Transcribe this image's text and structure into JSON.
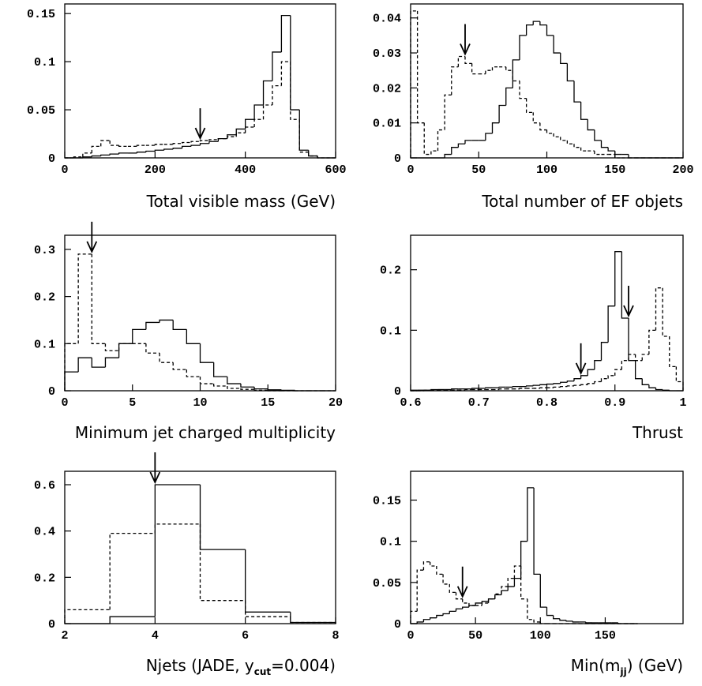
{
  "chart_data": [
    {
      "type": "histogram",
      "xlabel": "Total visible mass (GeV)",
      "bins": [
        0,
        20,
        40,
        60,
        80,
        100,
        120,
        140,
        160,
        180,
        200,
        220,
        240,
        260,
        280,
        300,
        320,
        340,
        360,
        380,
        400,
        420,
        440,
        460,
        480,
        500,
        520,
        540,
        560,
        580,
        600
      ],
      "series": [
        {
          "style": "solid",
          "color": "#000000",
          "values": [
            0,
            0,
            0.001,
            0.002,
            0.003,
            0.004,
            0.005,
            0.005,
            0.006,
            0.007,
            0.008,
            0.009,
            0.01,
            0.012,
            0.013,
            0.015,
            0.017,
            0.02,
            0.024,
            0.03,
            0.04,
            0.055,
            0.08,
            0.11,
            0.148,
            0.05,
            0.008,
            0.002,
            0,
            0
          ]
        },
        {
          "style": "dashed",
          "color": "#000000",
          "values": [
            0,
            0.001,
            0.005,
            0.012,
            0.018,
            0.013,
            0.012,
            0.012,
            0.013,
            0.013,
            0.014,
            0.014,
            0.015,
            0.016,
            0.017,
            0.018,
            0.019,
            0.02,
            0.022,
            0.026,
            0.032,
            0.04,
            0.055,
            0.075,
            0.1,
            0.04,
            0.006,
            0.002,
            0,
            0
          ]
        }
      ],
      "cuts": [
        300
      ],
      "xlim": [
        0,
        600
      ],
      "xticks": [
        0,
        200,
        400,
        600
      ],
      "ylim": [
        0,
        0.16
      ],
      "yticks": [
        0,
        0.05,
        0.1,
        0.15
      ]
    },
    {
      "type": "histogram",
      "xlabel": "Total number of EF objets",
      "bins": [
        0,
        5,
        10,
        15,
        20,
        25,
        30,
        35,
        40,
        45,
        50,
        55,
        60,
        65,
        70,
        75,
        80,
        85,
        90,
        95,
        100,
        105,
        110,
        115,
        120,
        125,
        130,
        135,
        140,
        145,
        150,
        155,
        160,
        165,
        170,
        175,
        180,
        185,
        190,
        195,
        200
      ],
      "series": [
        {
          "style": "solid",
          "color": "#000000",
          "values": [
            0,
            0,
            0,
            0,
            0,
            0.001,
            0.003,
            0.004,
            0.005,
            0.005,
            0.005,
            0.007,
            0.01,
            0.015,
            0.02,
            0.028,
            0.035,
            0.038,
            0.039,
            0.038,
            0.035,
            0.03,
            0.027,
            0.022,
            0.016,
            0.011,
            0.008,
            0.005,
            0.003,
            0.002,
            0.001,
            0.001,
            0,
            0,
            0,
            0,
            0,
            0,
            0,
            0
          ]
        },
        {
          "style": "dashed",
          "color": "#000000",
          "values": [
            0.042,
            0.01,
            0.001,
            0.002,
            0.008,
            0.018,
            0.026,
            0.029,
            0.027,
            0.024,
            0.024,
            0.025,
            0.026,
            0.026,
            0.025,
            0.022,
            0.017,
            0.013,
            0.01,
            0.008,
            0.007,
            0.006,
            0.005,
            0.004,
            0.003,
            0.002,
            0.002,
            0.001,
            0.001,
            0.001,
            0,
            0,
            0,
            0,
            0,
            0,
            0,
            0,
            0,
            0
          ]
        }
      ],
      "cuts": [
        40
      ],
      "xlim": [
        0,
        200
      ],
      "xticks": [
        0,
        50,
        100,
        150,
        200
      ],
      "ylim": [
        0,
        0.044
      ],
      "yticks": [
        0,
        0.01,
        0.02,
        0.03,
        0.04
      ]
    },
    {
      "type": "histogram",
      "xlabel": "Minimum jet charged multiplicity",
      "bins": [
        0,
        1,
        2,
        3,
        4,
        5,
        6,
        7,
        8,
        9,
        10,
        11,
        12,
        13,
        14,
        15,
        16,
        17,
        18,
        19,
        20
      ],
      "series": [
        {
          "style": "solid",
          "color": "#000000",
          "values": [
            0.04,
            0.07,
            0.05,
            0.07,
            0.1,
            0.13,
            0.145,
            0.15,
            0.13,
            0.1,
            0.06,
            0.03,
            0.015,
            0.008,
            0.004,
            0.002,
            0.001,
            0,
            0,
            0
          ]
        },
        {
          "style": "dashed",
          "color": "#000000",
          "values": [
            0.1,
            0.29,
            0.1,
            0.085,
            0.1,
            0.1,
            0.08,
            0.06,
            0.045,
            0.03,
            0.015,
            0.01,
            0.005,
            0.003,
            0.001,
            0,
            0,
            0,
            0,
            0
          ]
        }
      ],
      "cuts": [
        2
      ],
      "xlim": [
        0,
        20
      ],
      "xticks": [
        0,
        5,
        10,
        15,
        20
      ],
      "ylim": [
        0,
        0.33
      ],
      "yticks": [
        0,
        0.1,
        0.2,
        0.3
      ]
    },
    {
      "type": "histogram",
      "xlabel": "Thrust",
      "bins": [
        0.6,
        0.61,
        0.62,
        0.63,
        0.64,
        0.65,
        0.66,
        0.67,
        0.68,
        0.69,
        0.7,
        0.71,
        0.72,
        0.73,
        0.74,
        0.75,
        0.76,
        0.77,
        0.78,
        0.79,
        0.8,
        0.81,
        0.82,
        0.83,
        0.84,
        0.85,
        0.86,
        0.87,
        0.88,
        0.89,
        0.9,
        0.91,
        0.92,
        0.93,
        0.94,
        0.95,
        0.96,
        0.97,
        0.98,
        0.99,
        1
      ],
      "series": [
        {
          "style": "solid",
          "color": "#000000",
          "values": [
            0.001,
            0.001,
            0.001,
            0.002,
            0.002,
            0.002,
            0.003,
            0.003,
            0.003,
            0.004,
            0.004,
            0.005,
            0.005,
            0.006,
            0.006,
            0.007,
            0.007,
            0.008,
            0.009,
            0.01,
            0.011,
            0.012,
            0.014,
            0.016,
            0.02,
            0.025,
            0.035,
            0.05,
            0.08,
            0.14,
            0.23,
            0.12,
            0.05,
            0.02,
            0.01,
            0.005,
            0.002,
            0.001,
            0,
            0
          ]
        },
        {
          "style": "dashed",
          "color": "#000000",
          "values": [
            0,
            0,
            0.001,
            0.001,
            0.001,
            0.001,
            0.001,
            0.001,
            0.002,
            0.002,
            0.002,
            0.002,
            0.002,
            0.003,
            0.003,
            0.003,
            0.004,
            0.004,
            0.004,
            0.005,
            0.005,
            0.006,
            0.007,
            0.008,
            0.009,
            0.01,
            0.012,
            0.015,
            0.02,
            0.025,
            0.035,
            0.05,
            0.06,
            0.05,
            0.06,
            0.1,
            0.17,
            0.09,
            0.04,
            0.015
          ]
        }
      ],
      "cuts": [
        0.85,
        0.92
      ],
      "xlim": [
        0.6,
        1
      ],
      "xticks": [
        0.6,
        0.7,
        0.8,
        0.9,
        1
      ],
      "ylim": [
        0,
        0.257
      ],
      "yticks": [
        0,
        0.1,
        0.2
      ]
    },
    {
      "type": "histogram",
      "xlabel_parts": [
        {
          "text": "Njets (JADE, y"
        },
        {
          "text": "cut",
          "sub": true
        },
        {
          "text": "=0.004)"
        }
      ],
      "bins": [
        2,
        3,
        4,
        5,
        6,
        7,
        8
      ],
      "series": [
        {
          "style": "solid",
          "color": "#000000",
          "values": [
            0,
            0.03,
            0.6,
            0.32,
            0.05,
            0.005
          ]
        },
        {
          "style": "dashed",
          "color": "#000000",
          "values": [
            0.06,
            0.39,
            0.43,
            0.1,
            0.03,
            0.005
          ]
        }
      ],
      "cuts": [
        4
      ],
      "xlim": [
        2,
        8
      ],
      "xticks": [
        2,
        4,
        6,
        8
      ],
      "ylim": [
        0,
        0.658
      ],
      "yticks": [
        0,
        0.2,
        0.4,
        0.6
      ]
    },
    {
      "type": "histogram",
      "xlabel_parts": [
        {
          "text": "Min(m"
        },
        {
          "text": "jj",
          "sub": true
        },
        {
          "text": ") (GeV)"
        }
      ],
      "bins": [
        0,
        5,
        10,
        15,
        20,
        25,
        30,
        35,
        40,
        45,
        50,
        55,
        60,
        65,
        70,
        75,
        80,
        85,
        90,
        95,
        100,
        105,
        110,
        115,
        120,
        125,
        130,
        135,
        140,
        145,
        150,
        155,
        160,
        165,
        170,
        175
      ],
      "series": [
        {
          "style": "solid",
          "color": "#000000",
          "values": [
            0,
            0.002,
            0.005,
            0.007,
            0.01,
            0.012,
            0.015,
            0.018,
            0.02,
            0.022,
            0.025,
            0.027,
            0.03,
            0.035,
            0.04,
            0.045,
            0.055,
            0.1,
            0.165,
            0.06,
            0.02,
            0.01,
            0.006,
            0.004,
            0.003,
            0.002,
            0.002,
            0.001,
            0.001,
            0.001,
            0.001,
            0.001,
            0,
            0,
            0
          ]
        },
        {
          "style": "dashed",
          "color": "#000000",
          "values": [
            0.015,
            0.065,
            0.075,
            0.07,
            0.06,
            0.048,
            0.038,
            0.03,
            0.025,
            0.022,
            0.022,
            0.025,
            0.03,
            0.036,
            0.045,
            0.055,
            0.07,
            0.03,
            0.005,
            0.002,
            0,
            0,
            0,
            0,
            0,
            0,
            0,
            0,
            0,
            0,
            0,
            0,
            0,
            0,
            0
          ]
        }
      ],
      "cuts": [
        40
      ],
      "xlim": [
        0,
        210
      ],
      "xticks": [
        0,
        50,
        100,
        150
      ],
      "ylim": [
        0,
        0.185
      ],
      "yticks": [
        0,
        0.05,
        0.1,
        0.15
      ]
    }
  ]
}
